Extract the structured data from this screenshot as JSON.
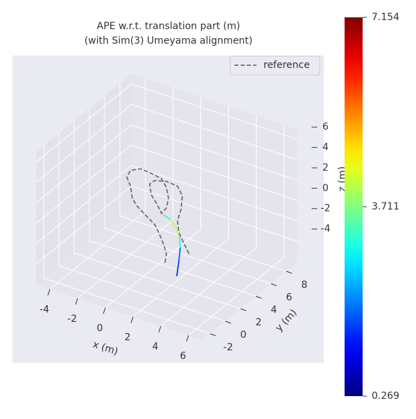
{
  "chart_data": {
    "type": "line3d",
    "title": "APE w.r.t. translation part (m)",
    "subtitle": "(with Sim(3) Umeyama alignment)",
    "x_label": "x (m)",
    "y_label": "y (m)",
    "z_label": "z (m)",
    "xlim": [
      -5,
      7
    ],
    "ylim": [
      -3,
      9.5
    ],
    "zlim": [
      -6,
      7
    ],
    "xticks": [
      -4,
      -2,
      0,
      2,
      4,
      6
    ],
    "yticks": [
      -2,
      0,
      2,
      4,
      6,
      8
    ],
    "zticks": [
      -4,
      -2,
      0,
      2,
      4,
      6
    ],
    "grid": true,
    "legend_position": "upper right",
    "reference": {
      "name": "reference",
      "color": "#6e6e6e",
      "x": [
        1,
        1.1,
        0.9,
        0.6,
        0.25,
        -0.4,
        -1,
        -1.35,
        -1.5,
        -1.75,
        -1.5,
        -0.75,
        0,
        0.75,
        1.1,
        1.25,
        1.1,
        0.75,
        0.4,
        0,
        -0.1,
        0.25,
        1.1,
        1.9,
        2.25,
        2.15,
        1.9,
        2,
        2.4,
        2.8
      ],
      "y": [
        3,
        3,
        3,
        3,
        3,
        3,
        3,
        3,
        3,
        3,
        3,
        3,
        3,
        3,
        3,
        3,
        3,
        3,
        3,
        3,
        3,
        3,
        3,
        3,
        3,
        3,
        3,
        3,
        3,
        3
      ],
      "z": [
        -4.8,
        -3.9,
        -3.1,
        -2.2,
        -1.4,
        -0.8,
        -0.2,
        0.4,
        1.6,
        2.3,
        3.1,
        3.6,
        3.5,
        3.3,
        2.6,
        1.6,
        0.6,
        -0.1,
        0.7,
        1.4,
        2.4,
        2.9,
        3.2,
        3.1,
        2.3,
        0.9,
        -0.3,
        -1.4,
        -2.4,
        -3.3
      ]
    },
    "estimate": {
      "colormap": "jet",
      "x": [
        0.9,
        1.4,
        1.8,
        2.05,
        2.1,
        2,
        1.85
      ],
      "y": [
        3,
        3,
        3,
        3,
        3,
        3,
        3
      ],
      "z": [
        -0.2,
        -0.4,
        -1.0,
        -1.9,
        -2.9,
        -4.2,
        -5.7
      ],
      "error": [
        3.2,
        4.2,
        4.0,
        3.0,
        1.8,
        1.5,
        1.3
      ]
    },
    "colorbar_lim": [
      0.269,
      7.154
    ],
    "colorbar_ticks": [
      0.269,
      3.711,
      7.154
    ]
  }
}
